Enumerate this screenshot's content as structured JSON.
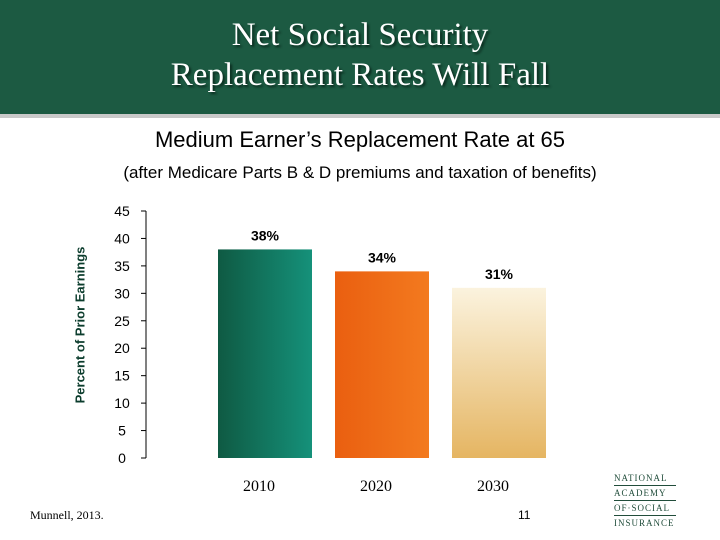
{
  "title": {
    "line1": "Net Social Security",
    "line2": "Replacement Rates Will Fall"
  },
  "chart_data": {
    "type": "bar",
    "title": "Medium Earner’s Replacement Rate at 65",
    "subtitle": "(after Medicare Parts B & D premiums and taxation of benefits)",
    "ylabel": "Percent of Prior Earnings",
    "xlabel": "",
    "categories": [
      "2010",
      "2020",
      "2030"
    ],
    "values": [
      38,
      34,
      31
    ],
    "data_labels": [
      "38%",
      "34%",
      "31%"
    ],
    "ylim": [
      0,
      45
    ],
    "yticks": [
      "0",
      "5",
      "10",
      "15",
      "20",
      "25",
      "30",
      "35",
      "40",
      "45"
    ],
    "grid": false,
    "colors": [
      "#116b50",
      "#ef6a17",
      "#efce8c"
    ]
  },
  "footer": {
    "source": "Munnell, 2013.",
    "page": "11"
  },
  "logo": {
    "line1": "NATIONAL",
    "line2": "ACADEMY",
    "line3": "OF·SOCIAL",
    "line4": "INSURANCE"
  }
}
